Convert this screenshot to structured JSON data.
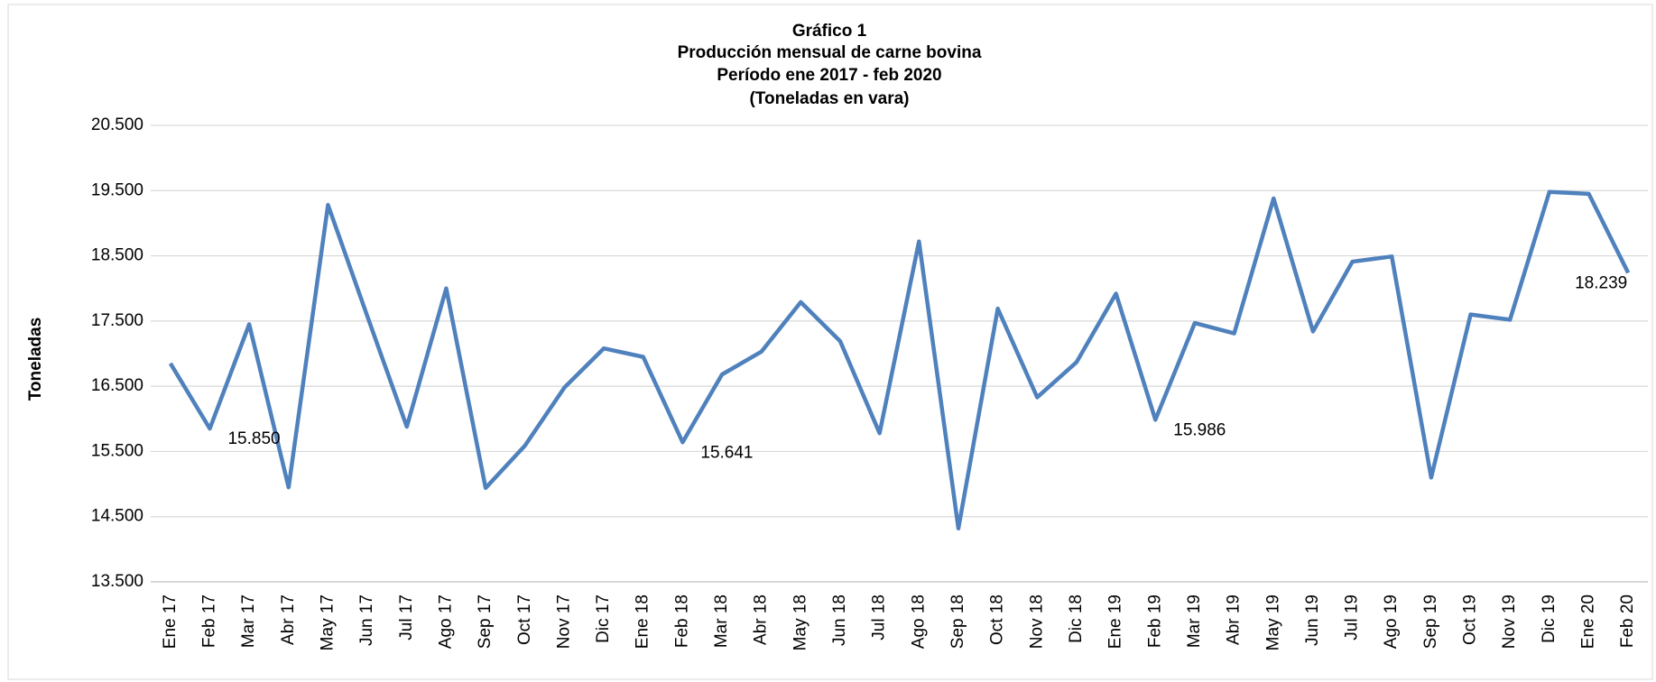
{
  "chart_data": {
    "type": "line",
    "title": [
      "Gráfico 1",
      "Producción mensual de carne bovina",
      "Período ene 2017 -  feb 2020",
      "(Toneladas en vara)"
    ],
    "y_label": "Toneladas",
    "categories": [
      "Ene 17",
      "Feb 17",
      "Mar 17",
      "Abr 17",
      "May 17",
      "Jun 17",
      "Jul 17",
      "Ago 17",
      "Sep 17",
      "Oct 17",
      "Nov 17",
      "Dic 17",
      "Ene 18",
      "Feb 18",
      "Mar 18",
      "Abr 18",
      "May 18",
      "Jun 18",
      "Jul 18",
      "Ago 18",
      "Sep 18",
      "Oct 18",
      "Nov 18",
      "Dic 18",
      "Ene 19",
      "Feb 19",
      "Mar 19",
      "Abr 19",
      "May 19",
      "Jun 19",
      "Jul 19",
      "Ago 19",
      "Sep 19",
      "Oct 19",
      "Nov 19",
      "Dic 19",
      "Ene 20",
      "Feb 20"
    ],
    "series": [
      {
        "color": "#4f81bd",
        "values": [
          16850,
          15850,
          17450,
          14950,
          19280,
          17570,
          15880,
          18000,
          14940,
          15590,
          16480,
          17080,
          16950,
          15641,
          16680,
          17030,
          17790,
          17190,
          15780,
          18720,
          14320,
          17690,
          16330,
          16870,
          17920,
          15986,
          17470,
          17310,
          19380,
          17340,
          18410,
          18490,
          15100,
          17600,
          17520,
          19480,
          19450,
          18239
        ],
        "value_labels": [
          null,
          "15.850",
          null,
          null,
          null,
          null,
          null,
          null,
          null,
          null,
          null,
          null,
          null,
          "15.641",
          null,
          null,
          null,
          null,
          null,
          null,
          null,
          null,
          null,
          null,
          null,
          "15.986",
          null,
          null,
          null,
          null,
          null,
          null,
          null,
          null,
          null,
          null,
          null,
          "18.239"
        ]
      }
    ],
    "ylim": [
      13500,
      20500
    ],
    "yticks": [
      {
        "value": 13500,
        "label": "13.500"
      },
      {
        "value": 14500,
        "label": "14.500"
      },
      {
        "value": 15500,
        "label": "15.500"
      },
      {
        "value": 16500,
        "label": "16.500"
      },
      {
        "value": 17500,
        "label": "17.500"
      },
      {
        "value": 18500,
        "label": "18.500"
      },
      {
        "value": 19500,
        "label": "19.500"
      },
      {
        "value": 20500,
        "label": "20.500"
      }
    ],
    "grid": true
  }
}
